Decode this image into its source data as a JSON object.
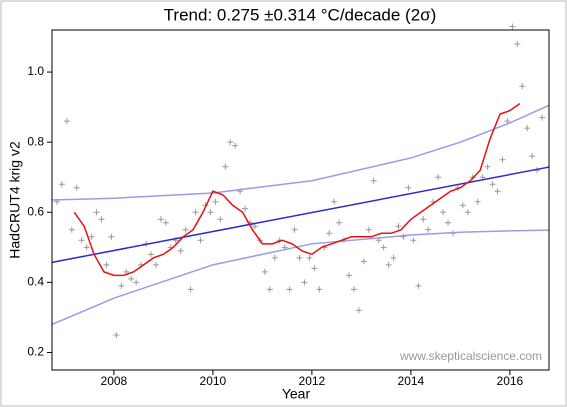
{
  "chart_data": {
    "type": "scatter",
    "title": "Trend: 0.275 ±0.314 °C/decade (2σ)",
    "x_label": "Year",
    "y_label": "HadCRUT4 krig v2",
    "annotation": "www.skepticalscience.com",
    "xlim": [
      2006.75,
      2016.79
    ],
    "ylim": [
      0.15,
      1.12
    ],
    "xticks": [
      2008,
      2010,
      2012,
      2014,
      2016
    ],
    "yticks": [
      0.2,
      0.4,
      0.6,
      0.8,
      {
        "value": 1,
        "label": "1.0"
      }
    ],
    "grid": false,
    "series": [
      {
        "type": "scatter",
        "color": "#999999",
        "x": [
          2006.85,
          2006.95,
          2007.05,
          2007.15,
          2007.25,
          2007.35,
          2007.45,
          2007.55,
          2007.65,
          2007.75,
          2007.85,
          2007.95,
          2008.05,
          2008.15,
          2008.25,
          2008.35,
          2008.45,
          2008.55,
          2008.65,
          2008.75,
          2008.85,
          2008.95,
          2009.05,
          2009.15,
          2009.25,
          2009.35,
          2009.45,
          2009.55,
          2009.65,
          2009.75,
          2009.85,
          2009.95,
          2010.05,
          2010.15,
          2010.25,
          2010.35,
          2010.45,
          2010.55,
          2010.65,
          2010.75,
          2010.85,
          2010.95,
          2011.05,
          2011.15,
          2011.25,
          2011.35,
          2011.45,
          2011.55,
          2011.65,
          2011.75,
          2011.85,
          2011.95,
          2012.05,
          2012.15,
          2012.25,
          2012.35,
          2012.45,
          2012.55,
          2012.65,
          2012.75,
          2012.85,
          2012.95,
          2013.05,
          2013.15,
          2013.25,
          2013.35,
          2013.45,
          2013.55,
          2013.65,
          2013.75,
          2013.85,
          2013.95,
          2014.05,
          2014.15,
          2014.25,
          2014.35,
          2014.45,
          2014.55,
          2014.65,
          2014.75,
          2014.85,
          2014.95,
          2015.05,
          2015.15,
          2015.25,
          2015.35,
          2015.45,
          2015.55,
          2015.65,
          2015.75,
          2015.85,
          2015.95,
          2016.05,
          2016.15,
          2016.25,
          2016.35,
          2016.45,
          2016.55,
          2016.65
        ],
        "values": [
          0.63,
          0.68,
          0.86,
          0.55,
          0.67,
          0.52,
          0.5,
          0.53,
          0.6,
          0.58,
          0.45,
          0.53,
          0.25,
          0.39,
          0.43,
          0.41,
          0.4,
          0.45,
          0.51,
          0.48,
          0.45,
          0.58,
          0.57,
          0.5,
          0.52,
          0.49,
          0.55,
          0.38,
          0.6,
          0.52,
          0.62,
          0.6,
          0.63,
          0.58,
          0.73,
          0.8,
          0.79,
          0.66,
          0.61,
          0.57,
          0.56,
          0.52,
          0.43,
          0.38,
          0.47,
          0.52,
          0.5,
          0.38,
          0.55,
          0.47,
          0.4,
          0.47,
          0.44,
          0.38,
          0.5,
          0.54,
          0.63,
          0.57,
          0.52,
          0.42,
          0.38,
          0.32,
          0.46,
          0.55,
          0.69,
          0.52,
          0.5,
          0.45,
          0.47,
          0.56,
          0.53,
          0.67,
          0.52,
          0.39,
          0.58,
          0.55,
          0.63,
          0.7,
          0.6,
          0.57,
          0.54,
          0.67,
          0.62,
          0.6,
          0.7,
          0.63,
          0.7,
          0.73,
          0.68,
          0.66,
          0.75,
          0.86,
          1.13,
          1.08,
          0.96,
          0.84,
          0.76,
          0.72,
          0.87
        ]
      },
      {
        "type": "line",
        "color": "#9a9ae8",
        "x": [
          2006.75,
          2008,
          2010,
          2012,
          2014,
          2015,
          2016,
          2016.79
        ],
        "values": [
          0.635,
          0.64,
          0.655,
          0.69,
          0.755,
          0.8,
          0.855,
          0.905
        ]
      },
      {
        "type": "line",
        "color": "#9a9ae8",
        "x": [
          2006.75,
          2008,
          2010,
          2012,
          2014,
          2015,
          2016,
          2016.79
        ],
        "values": [
          0.28,
          0.355,
          0.45,
          0.51,
          0.535,
          0.543,
          0.547,
          0.549
        ]
      },
      {
        "type": "line",
        "color": "#2a2ad0",
        "x": [
          2006.75,
          2016.79
        ],
        "values": [
          0.457,
          0.729
        ]
      },
      {
        "type": "line",
        "color": "#e81010",
        "x": [
          2007.2,
          2007.4,
          2007.6,
          2007.8,
          2008.0,
          2008.2,
          2008.4,
          2008.6,
          2008.8,
          2009.0,
          2009.2,
          2009.4,
          2009.6,
          2009.8,
          2010.0,
          2010.2,
          2010.4,
          2010.6,
          2010.8,
          2011.0,
          2011.2,
          2011.4,
          2011.6,
          2011.8,
          2012.0,
          2012.2,
          2012.4,
          2012.6,
          2012.8,
          2013.0,
          2013.2,
          2013.4,
          2013.6,
          2013.8,
          2014.0,
          2014.2,
          2014.4,
          2014.6,
          2014.8,
          2015.0,
          2015.2,
          2015.4,
          2015.6,
          2015.8,
          2016.0,
          2016.2
        ],
        "values": [
          0.6,
          0.56,
          0.48,
          0.43,
          0.42,
          0.42,
          0.43,
          0.45,
          0.47,
          0.48,
          0.5,
          0.53,
          0.55,
          0.6,
          0.66,
          0.65,
          0.62,
          0.6,
          0.55,
          0.51,
          0.51,
          0.52,
          0.51,
          0.49,
          0.48,
          0.5,
          0.51,
          0.52,
          0.53,
          0.53,
          0.53,
          0.54,
          0.54,
          0.55,
          0.58,
          0.6,
          0.62,
          0.64,
          0.66,
          0.67,
          0.69,
          0.72,
          0.81,
          0.88,
          0.89,
          0.91
        ]
      }
    ]
  }
}
